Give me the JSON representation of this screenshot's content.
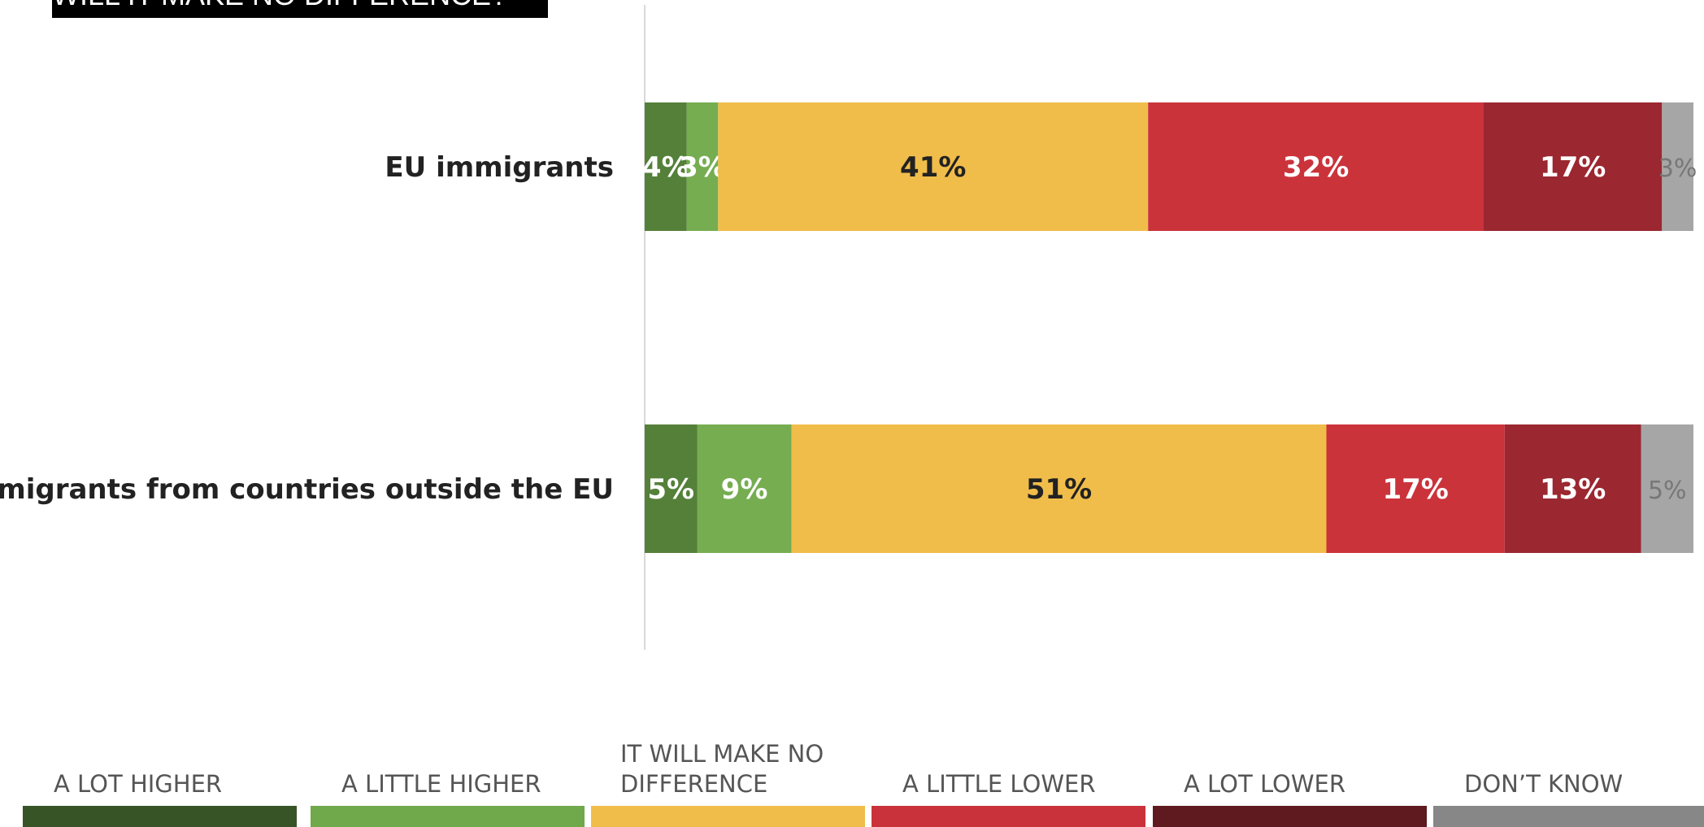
{
  "chart_data": {
    "type": "bar",
    "orientation": "horizontal",
    "stacked": true,
    "title": "WILL IT MAKE NO DIFFERENCE?",
    "categories": [
      "EU immigrants",
      "Immigrants from countries outside the EU"
    ],
    "series": [
      {
        "name": "A LOT HIGHER",
        "color": "#548039",
        "legend_color": "#375427",
        "values": [
          4,
          5
        ],
        "labels": [
          "4%",
          "5%"
        ]
      },
      {
        "name": "A LITTLE HIGHER",
        "color": "#76AD51",
        "legend_color": "#70A84C",
        "values": [
          3,
          9
        ],
        "labels": [
          "3%",
          "9%"
        ]
      },
      {
        "name": "IT WILL MAKE NO DIFFERENCE",
        "color": "#F1BD4A",
        "legend_color": "#F1BD4A",
        "values": [
          41,
          51
        ],
        "labels": [
          "41%",
          "51%"
        ]
      },
      {
        "name": "A LITTLE LOWER",
        "color": "#CB333B",
        "legend_color": "#C9323A",
        "values": [
          32,
          17
        ],
        "labels": [
          "32%",
          "17%"
        ]
      },
      {
        "name": "A LOT LOWER",
        "color": "#9B2730",
        "legend_color": "#5E1A1E",
        "values": [
          17,
          13
        ],
        "labels": [
          "17%",
          "13%"
        ]
      },
      {
        "name": "DON’T KNOW",
        "color": "#A6A6A6",
        "legend_color": "#878787",
        "values": [
          3,
          5
        ],
        "labels": [
          "3%",
          "5%"
        ]
      }
    ],
    "label_colors": [
      "#ffffff",
      "#ffffff",
      "#222222",
      "#ffffff",
      "#ffffff",
      "#777777"
    ],
    "xlim": [
      0,
      100
    ],
    "grid": false,
    "legend_position": "bottom"
  }
}
